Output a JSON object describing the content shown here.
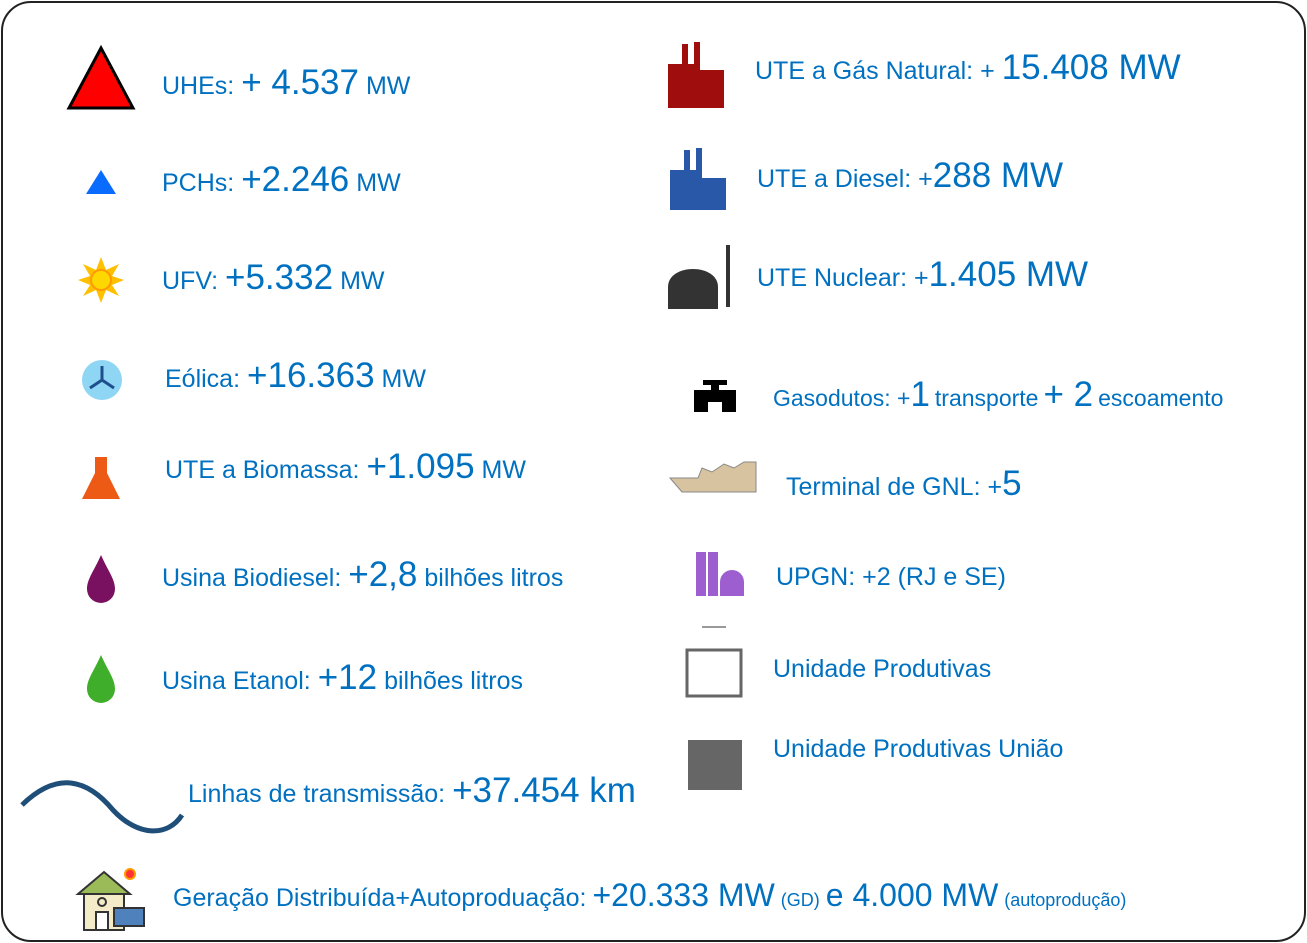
{
  "left": [
    [
      "UHEs:",
      "+ 4.537",
      "MW"
    ],
    [
      "PCHs:",
      "+2.246",
      "MW"
    ],
    [
      "UFV:",
      "+5.332",
      "MW"
    ],
    [
      "Eólica:",
      "+16.363",
      "MW"
    ],
    [
      "UTE a Biomassa:",
      "+1.095",
      "MW"
    ],
    [
      "Usina Biodiesel:",
      "+2,8",
      "bilhões litros"
    ],
    [
      "Usina Etanol:",
      "+12",
      "bilhões litros"
    ],
    [
      "Linhas de transmissão:",
      "+37.454 km"
    ]
  ],
  "right": [
    [
      "UTE a Gás Natural: +",
      "15.408 MW"
    ],
    [
      "UTE a Diesel: +",
      "288 MW"
    ],
    [
      "UTE Nuclear: +",
      "1.405 MW"
    ],
    [
      "Gasodutos: +",
      "1",
      "transporte",
      "+ 2",
      "escoamento"
    ],
    [
      "Terminal de GNL: +",
      "5"
    ],
    [
      "UPGN: +2 (RJ e SE)"
    ],
    [
      "Unidade Produtivas"
    ],
    [
      "Unidade Produtivas União"
    ]
  ],
  "bottom": [
    "Geração Distribuída+Autoproduação:",
    "+20.333 MW",
    "(GD)",
    "e 4.000 MW",
    "(autoprodução)"
  ]
}
